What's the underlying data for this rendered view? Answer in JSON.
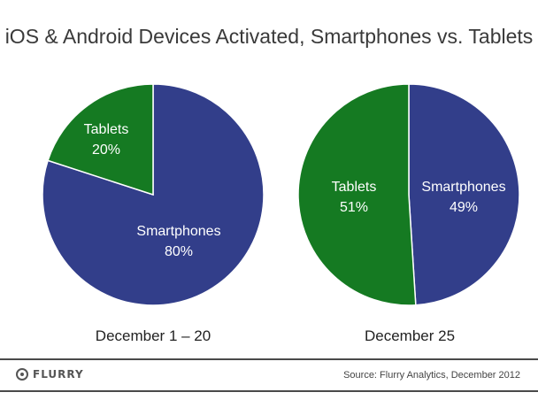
{
  "title": "iOS & Android Devices Activated, Smartphones vs. Tablets",
  "colors": {
    "smartphones": "#323e8a",
    "tablets": "#157a22",
    "stroke": "#ffffff"
  },
  "chart_data": [
    {
      "type": "pie",
      "caption": "December 1 – 20",
      "slices": [
        {
          "label": "Smartphones",
          "value": 80,
          "value_label": "80%"
        },
        {
          "label": "Tablets",
          "value": 20,
          "value_label": "20%"
        }
      ]
    },
    {
      "type": "pie",
      "caption": "December 25",
      "slices": [
        {
          "label": "Smartphones",
          "value": 49,
          "value_label": "49%"
        },
        {
          "label": "Tablets",
          "value": 51,
          "value_label": "51%"
        }
      ]
    }
  ],
  "footer": {
    "logo_text": "FLURRY",
    "source": "Source: Flurry Analytics, December 2012"
  }
}
